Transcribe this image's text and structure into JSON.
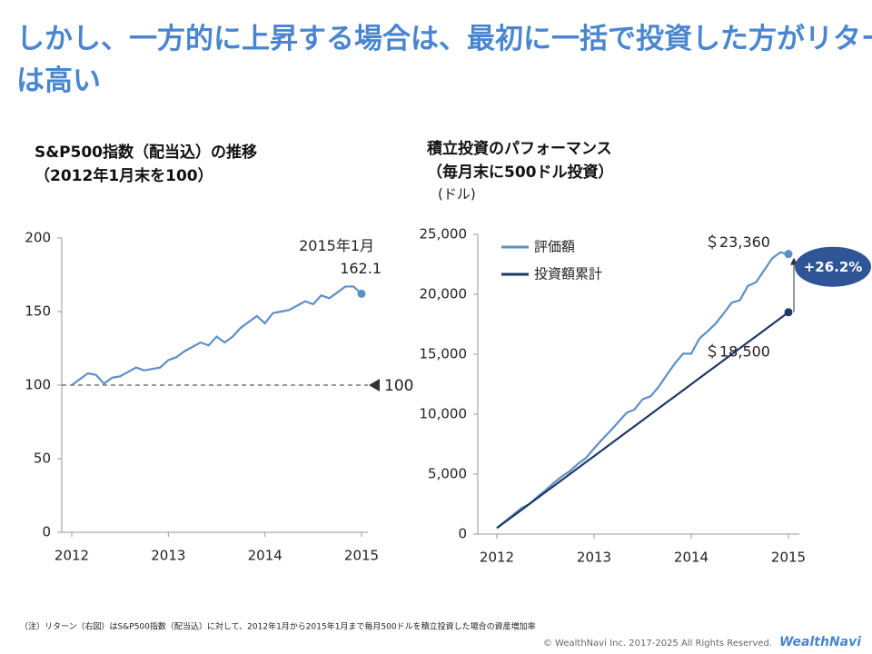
{
  "slide_title": "しかし、一方的に上昇する場合は、最初に一括で投資した方がリターンは高い",
  "chart_data": [
    {
      "type": "line",
      "title": "S&P500指数（配当込）の推移",
      "subtitle": "（2012年1月末を100）",
      "categories": [
        "2012",
        null,
        null,
        null,
        null,
        null,
        null,
        null,
        null,
        null,
        null,
        null,
        "2013",
        null,
        null,
        null,
        null,
        null,
        null,
        null,
        null,
        null,
        null,
        null,
        "2014",
        null,
        null,
        null,
        null,
        null,
        null,
        null,
        null,
        null,
        null,
        null,
        "2015"
      ],
      "series": [
        {
          "name": "S&P500",
          "color": "#5b8fc9",
          "values": [
            100,
            104,
            108,
            107,
            101,
            105,
            106,
            109,
            112,
            110,
            111,
            112,
            117,
            119,
            123,
            126,
            129,
            127,
            133,
            129,
            133,
            139,
            143,
            147,
            142,
            149,
            150,
            151,
            154,
            157,
            155,
            161,
            159,
            163,
            167,
            167,
            162.1
          ]
        }
      ],
      "ylim": [
        0,
        200
      ],
      "yticks": [
        0,
        50,
        100,
        150,
        200
      ],
      "reference_line": 100,
      "end_annotation": "2015年1月"
    },
    {
      "type": "line",
      "title": "積立投資のパフォーマンス",
      "subtitle": "（毎月末に500ドル投資）",
      "y_label": "(ドル)",
      "categories": [
        "2012",
        null,
        null,
        null,
        null,
        null,
        null,
        null,
        null,
        null,
        null,
        null,
        "2013",
        null,
        null,
        null,
        null,
        null,
        null,
        null,
        null,
        null,
        null,
        null,
        "2014",
        null,
        null,
        null,
        null,
        null,
        null,
        null,
        null,
        null,
        null,
        null,
        "2015"
      ],
      "series": [
        {
          "name": "評価額",
          "color": "#5b8fc9",
          "values": [
            500,
            1050,
            1600,
            2150,
            2500,
            3100,
            3650,
            4250,
            4800,
            5250,
            5850,
            6350,
            7150,
            7900,
            8600,
            9350,
            10100,
            10400,
            11250,
            11500,
            12300,
            13300,
            14250,
            15050,
            15050,
            16300,
            16900,
            17550,
            18400,
            19300,
            19500,
            20700,
            21000,
            22000,
            23000,
            23500,
            23360
          ],
          "value_labels": [
            null,
            null,
            null,
            null,
            null,
            null,
            null,
            null,
            null,
            null,
            null,
            null,
            null,
            null,
            null,
            null,
            null,
            null,
            null,
            null,
            null,
            null,
            null,
            null,
            null,
            null,
            null,
            null,
            null,
            null,
            null,
            null,
            null,
            null,
            null,
            null,
            "＄23,360"
          ]
        },
        {
          "name": "投資額累計",
          "color": "#1f3864",
          "values": [
            500,
            1000,
            1500,
            2000,
            2500,
            3000,
            3500,
            4000,
            4500,
            5000,
            5500,
            6000,
            6500,
            7000,
            7500,
            8000,
            8500,
            9000,
            9500,
            10000,
            10500,
            11000,
            11500,
            12000,
            12500,
            13000,
            13500,
            14000,
            14500,
            15000,
            15500,
            16000,
            16500,
            17000,
            17500,
            18000,
            18500
          ],
          "value_labels": [
            null,
            null,
            null,
            null,
            null,
            null,
            null,
            null,
            null,
            null,
            null,
            null,
            null,
            null,
            null,
            null,
            null,
            null,
            null,
            null,
            null,
            null,
            null,
            null,
            null,
            null,
            null,
            null,
            null,
            null,
            null,
            null,
            null,
            null,
            null,
            null,
            "＄18,500"
          ]
        }
      ],
      "ylim": [
        0,
        25000
      ],
      "yticks": [
        0,
        {
          "value": 5000,
          "label": "5,000"
        },
        {
          "value": 10000,
          "label": "10,000"
        },
        {
          "value": 15000,
          "label": "15,000"
        },
        {
          "value": 20000,
          "label": "20,000"
        },
        {
          "value": 25000,
          "label": "25,000"
        }
      ],
      "gain_annotation": "+26.2%"
    }
  ],
  "footnote": "（注）リターン（右図）はS&P500指数（配当込）に対して、2012年1月から2015年1月まで毎月500ドルを積立投資した場合の資産増加率",
  "copyright": "© WealthNavi Inc. 2017-2025 All Rights Reserved.",
  "logo": "WealthNavi"
}
